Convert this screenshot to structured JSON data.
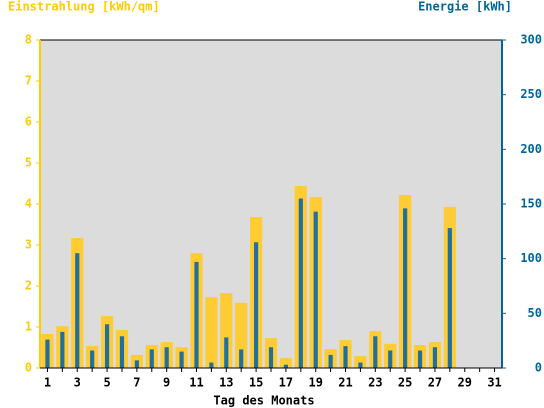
{
  "chart_data": {
    "type": "bar",
    "title_left": "Einstrahlung [kWh/qm]",
    "title_right": "Energie [kWh]",
    "x_label": "Tag des Monats",
    "categories": [
      1,
      null,
      3,
      null,
      5,
      null,
      7,
      null,
      9,
      null,
      11,
      null,
      13,
      null,
      15,
      null,
      17,
      null,
      19,
      null,
      21,
      null,
      23,
      null,
      25,
      null,
      27,
      null,
      29,
      null,
      31
    ],
    "series": [
      {
        "name": "Einstrahlung",
        "color": "#ffcc33",
        "axis": "y",
        "values": [
          0.83,
          1.02,
          3.17,
          0.54,
          1.27,
          0.93,
          0.32,
          0.56,
          0.63,
          0.51,
          2.8,
          1.73,
          1.83,
          1.59,
          3.68,
          0.73,
          0.24,
          4.44,
          4.17,
          0.46,
          0.68,
          0.29,
          0.9,
          0.59,
          4.22,
          0.56,
          0.63,
          3.93,
          null,
          null,
          null
        ]
      },
      {
        "name": "Energie",
        "color": "#1f6f9f",
        "axis": "y2",
        "values": [
          26,
          33,
          105,
          16,
          40,
          29,
          7,
          17,
          19,
          15,
          97,
          5,
          28,
          17,
          115,
          19,
          3,
          155,
          143,
          12,
          20,
          5,
          29,
          16,
          146,
          16,
          19,
          128,
          null,
          null,
          null
        ]
      }
    ],
    "ylim": [
      0,
      8
    ],
    "yticks": [
      0,
      1,
      2,
      3,
      4,
      5,
      6,
      7,
      8
    ],
    "y_color": "#ffcc00",
    "y2lim": [
      0,
      300
    ],
    "y2ticks": [
      0,
      50,
      100,
      150,
      200,
      250,
      300
    ],
    "y2_color": "#006699",
    "plot_background": "#dcdcdc"
  }
}
